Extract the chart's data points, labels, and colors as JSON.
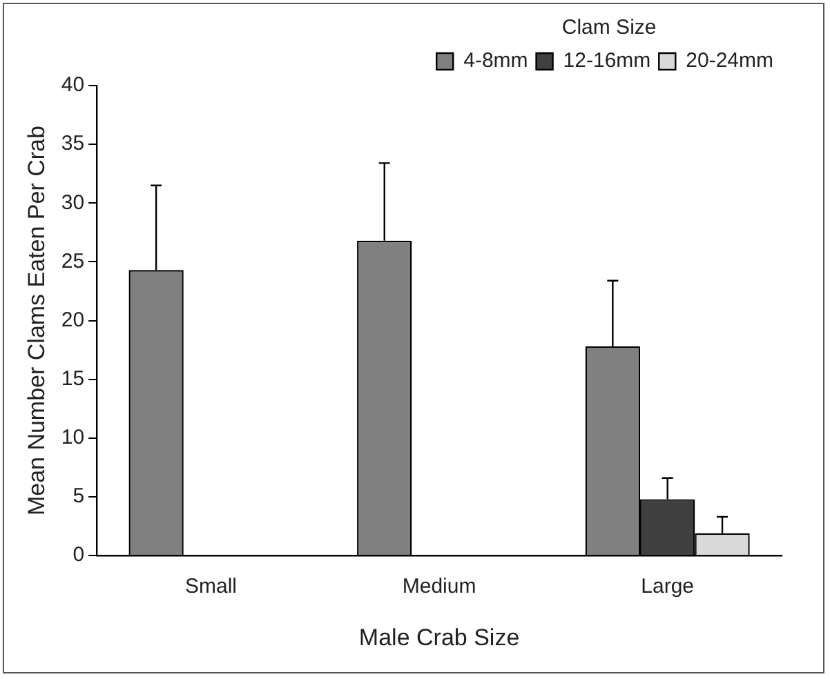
{
  "chart_data": {
    "type": "bar",
    "xlabel": "Male Crab Size",
    "ylabel": "Mean Number Clams Eaten Per Crab",
    "legend_title": "Clam Size",
    "categories": [
      "Small",
      "Medium",
      "Large"
    ],
    "series": [
      {
        "name": "4-8mm",
        "color": "#808080",
        "values": [
          24.3,
          26.8,
          17.8
        ],
        "errors": [
          7.2,
          6.6,
          5.6
        ]
      },
      {
        "name": "12-16mm",
        "color": "#404040",
        "values": [
          0,
          0,
          4.8
        ],
        "errors": [
          null,
          null,
          1.8
        ]
      },
      {
        "name": "20-24mm",
        "color": "#d9d9d9",
        "values": [
          0,
          0,
          1.9
        ],
        "errors": [
          null,
          null,
          1.4
        ]
      }
    ],
    "ylim": [
      0,
      40
    ],
    "yticks": [
      0,
      5,
      10,
      15,
      20,
      25,
      30,
      35,
      40
    ],
    "grid": false,
    "legend": "top"
  }
}
